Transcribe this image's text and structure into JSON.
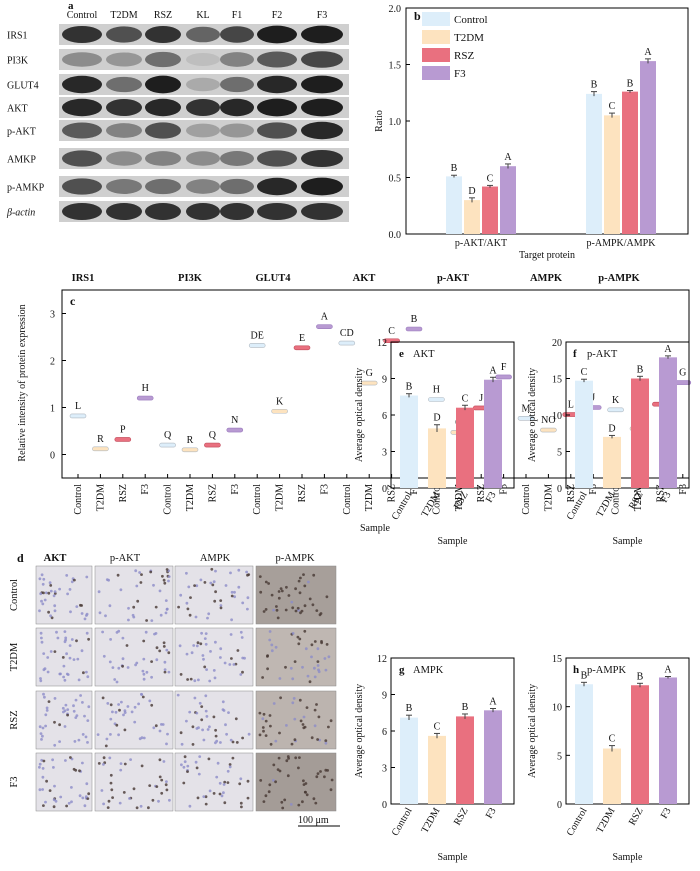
{
  "colors": {
    "control": "#ddeefa",
    "t2dm": "#fde3bf",
    "rsz": "#e9707f",
    "f3": "#b89ad2",
    "frame": "#000000"
  },
  "panel_labels": {
    "a": "a",
    "b": "b",
    "c": "c",
    "d": "d",
    "e": "e",
    "f": "f",
    "g": "g",
    "h": "h"
  },
  "blot": {
    "lanes": [
      "Control",
      "T2DM",
      "RSZ",
      "KL",
      "F1",
      "F2",
      "F3"
    ],
    "proteins": [
      "IRS1",
      "PI3K",
      "GLUT4",
      "AKT",
      "p-AKT",
      "AMKP",
      "p-AMKP",
      "β-actin"
    ],
    "intensity": [
      [
        0.85,
        0.7,
        0.85,
        0.6,
        0.75,
        0.95,
        0.95
      ],
      [
        0.4,
        0.35,
        0.55,
        0.15,
        0.45,
        0.65,
        0.75
      ],
      [
        0.9,
        0.55,
        0.95,
        0.25,
        0.55,
        0.9,
        0.95
      ],
      [
        0.9,
        0.85,
        0.9,
        0.85,
        0.9,
        0.95,
        0.95
      ],
      [
        0.65,
        0.45,
        0.7,
        0.3,
        0.35,
        0.7,
        0.9
      ],
      [
        0.7,
        0.4,
        0.45,
        0.4,
        0.5,
        0.7,
        0.85
      ],
      [
        0.7,
        0.5,
        0.55,
        0.45,
        0.55,
        0.9,
        0.95
      ],
      [
        0.85,
        0.85,
        0.85,
        0.85,
        0.85,
        0.85,
        0.85
      ]
    ]
  },
  "ihc": {
    "columns": [
      "AKT",
      "p-AKT",
      "AMPK",
      "p-AMPK"
    ],
    "rows": [
      "Control",
      "T2DM",
      "RSZ",
      "F3"
    ],
    "scale_label": "100 μm",
    "darkness": [
      [
        0.2,
        0.25,
        0.3,
        0.85
      ],
      [
        0.15,
        0.2,
        0.2,
        0.45
      ],
      [
        0.25,
        0.3,
        0.25,
        0.5
      ],
      [
        0.3,
        0.6,
        0.35,
        0.9
      ]
    ]
  },
  "chart_data": [
    {
      "id": "b",
      "type": "bar",
      "categories": [
        "p-AKT/AKT",
        "p-AMPK/AMPK"
      ],
      "legend": [
        "Control",
        "T2DM",
        "RSZ",
        "F3"
      ],
      "series": [
        {
          "name": "Control",
          "values": [
            0.51,
            1.24
          ],
          "errors": [
            0.01,
            0.02
          ],
          "letters": [
            "B",
            "B"
          ]
        },
        {
          "name": "T2DM",
          "values": [
            0.3,
            1.05
          ],
          "errors": [
            0.02,
            0.02
          ],
          "letters": [
            "D",
            "C"
          ]
        },
        {
          "name": "RSZ",
          "values": [
            0.42,
            1.26
          ],
          "errors": [
            0.01,
            0.01
          ],
          "letters": [
            "C",
            "B"
          ]
        },
        {
          "name": "F3",
          "values": [
            0.6,
            1.53
          ],
          "errors": [
            0.02,
            0.02
          ],
          "letters": [
            "A",
            "A"
          ]
        }
      ],
      "xlabel": "Target protein",
      "ylabel": "Ratio",
      "ylim": [
        0,
        2.0
      ],
      "yticks": [
        "0.0",
        "0.5",
        "1.0",
        "1.5",
        "2.0"
      ],
      "legend_position": "top-left"
    },
    {
      "id": "c",
      "type": "scatter",
      "group_labels": [
        "IRS1",
        "PI3K",
        "GLUT4",
        "AKT",
        "p-AKT",
        "AMPK",
        "p-AMPK"
      ],
      "x_labels": [
        "Control",
        "T2DM",
        "RSZ",
        "F3",
        "Control",
        "T2DM",
        "RSZ",
        "F3",
        "Control",
        "T2DM",
        "RSZ",
        "F3",
        "Control",
        "T2DM",
        "RSZ",
        "F3",
        "Control",
        "T2DM",
        "RSZ",
        "F3",
        "Control",
        "T2DM",
        "RSZ",
        "F3",
        "Control",
        "T2DM",
        "RSZ",
        "F3"
      ],
      "values": [
        0.82,
        0.12,
        0.32,
        1.2,
        0.2,
        0.1,
        0.2,
        0.52,
        2.32,
        0.92,
        2.27,
        2.72,
        2.37,
        1.52,
        2.42,
        2.67,
        1.17,
        0.47,
        0.99,
        1.65,
        0.77,
        0.52,
        0.85,
        1.0,
        0.95,
        0.55,
        1.07,
        1.53
      ],
      "letters": [
        "L",
        "R",
        "P",
        "H",
        "Q",
        "R",
        "Q",
        "N",
        "DE",
        "K",
        "E",
        "A",
        "CD",
        "G",
        "C",
        "B",
        "H",
        "O",
        "J",
        "F",
        "M",
        "NO",
        "L",
        "J",
        "K",
        "N",
        "I",
        "G"
      ],
      "xlabel": "Sample",
      "ylabel": "Relative intensity of protein expression",
      "ylim": [
        -0.5,
        3.5
      ],
      "yticks": [
        "0",
        "1",
        "2",
        "3"
      ]
    },
    {
      "id": "e",
      "type": "bar",
      "title": "AKT",
      "categories": [
        "Control",
        "T2DM",
        "RSZ",
        "F3"
      ],
      "values": [
        7.6,
        4.9,
        6.6,
        8.9
      ],
      "errors": [
        0.15,
        0.3,
        0.2,
        0.2
      ],
      "letters": [
        "B",
        "D",
        "C",
        "A"
      ],
      "xlabel": "Sample",
      "ylabel": "Average optical density",
      "ylim": [
        0,
        12
      ],
      "yticks": [
        "0",
        "3",
        "6",
        "9",
        "12"
      ]
    },
    {
      "id": "f",
      "type": "bar",
      "title": "p-AKT",
      "categories": [
        "Control",
        "T2DM",
        "RSZ",
        "F3"
      ],
      "values": [
        14.7,
        7.0,
        15.0,
        17.9
      ],
      "errors": [
        0.2,
        0.2,
        0.3,
        0.2
      ],
      "letters": [
        "C",
        "D",
        "B",
        "A"
      ],
      "xlabel": "Sample",
      "ylabel": "Average optical density",
      "ylim": [
        0,
        20
      ],
      "yticks": [
        "0",
        "5",
        "10",
        "15",
        "20"
      ]
    },
    {
      "id": "g",
      "type": "bar",
      "title": "AMPK",
      "categories": [
        "Control",
        "T2DM",
        "RSZ",
        "F3"
      ],
      "values": [
        7.1,
        5.6,
        7.2,
        7.7
      ],
      "errors": [
        0.2,
        0.2,
        0.2,
        0.15
      ],
      "letters": [
        "B",
        "C",
        "B",
        "A"
      ],
      "xlabel": "Sample",
      "ylabel": "Average optical density",
      "ylim": [
        0,
        12
      ],
      "yticks": [
        "0",
        "3",
        "6",
        "9",
        "12"
      ]
    },
    {
      "id": "h",
      "type": "bar",
      "title": "p-AMPK",
      "categories": [
        "Control",
        "T2DM",
        "RSZ",
        "F3"
      ],
      "values": [
        12.3,
        5.7,
        12.2,
        13.0
      ],
      "errors": [
        0.2,
        0.3,
        0.2,
        0.1
      ],
      "letters": [
        "B",
        "C",
        "B",
        "A"
      ],
      "xlabel": "Sample",
      "ylabel": "Average optical density",
      "ylim": [
        0,
        15
      ],
      "yticks": [
        "0",
        "5",
        "10",
        "15"
      ]
    }
  ]
}
